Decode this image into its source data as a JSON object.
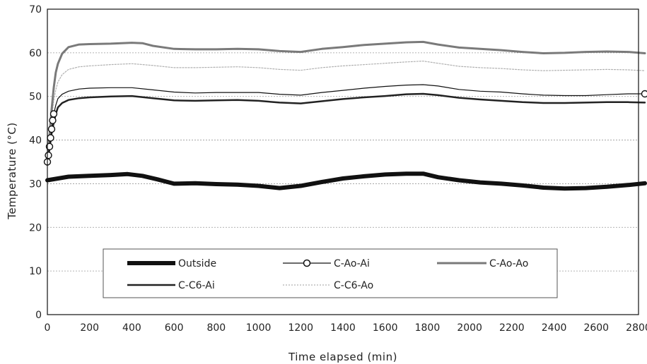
{
  "chart_data": {
    "type": "line",
    "title": "",
    "xlabel": "Time elapsed (min)",
    "ylabel": "Temperature (°C)",
    "xlim": [
      0,
      2800
    ],
    "ylim": [
      0,
      70
    ],
    "xticks": [
      0,
      200,
      400,
      600,
      800,
      1000,
      1200,
      1400,
      1600,
      1800,
      2000,
      2200,
      2400,
      2600,
      2800
    ],
    "yticks": [
      0,
      10,
      20,
      30,
      40,
      50,
      60,
      70
    ],
    "grid": "horizontal dashed",
    "legend": "inside, lower-left",
    "series": [
      {
        "name": "Outside",
        "color": "#111111",
        "style": "thick",
        "points": [
          [
            0,
            30.8
          ],
          [
            50,
            31.2
          ],
          [
            100,
            31.6
          ],
          [
            200,
            31.8
          ],
          [
            300,
            32.0
          ],
          [
            380,
            32.2
          ],
          [
            450,
            31.8
          ],
          [
            520,
            31.0
          ],
          [
            600,
            30.0
          ],
          [
            700,
            30.1
          ],
          [
            800,
            29.9
          ],
          [
            900,
            29.8
          ],
          [
            1000,
            29.5
          ],
          [
            1100,
            29.0
          ],
          [
            1200,
            29.5
          ],
          [
            1300,
            30.4
          ],
          [
            1400,
            31.2
          ],
          [
            1500,
            31.7
          ],
          [
            1600,
            32.1
          ],
          [
            1700,
            32.3
          ],
          [
            1780,
            32.3
          ],
          [
            1850,
            31.5
          ],
          [
            1950,
            30.8
          ],
          [
            2050,
            30.3
          ],
          [
            2150,
            30.0
          ],
          [
            2250,
            29.6
          ],
          [
            2350,
            29.1
          ],
          [
            2450,
            28.9
          ],
          [
            2550,
            29.0
          ],
          [
            2650,
            29.3
          ],
          [
            2750,
            29.7
          ],
          [
            2830,
            30.1
          ]
        ]
      },
      {
        "name": "C-Ao-Ai",
        "color": "#111111",
        "style": "circle-markers",
        "points": [
          [
            0,
            35.0
          ],
          [
            5,
            36.5
          ],
          [
            10,
            38.5
          ],
          [
            15,
            40.5
          ],
          [
            20,
            42.5
          ],
          [
            25,
            44.5
          ],
          [
            30,
            46.0
          ],
          [
            40,
            48.0
          ],
          [
            50,
            49.5
          ],
          [
            70,
            50.5
          ],
          [
            100,
            51.2
          ],
          [
            150,
            51.7
          ],
          [
            200,
            51.9
          ],
          [
            300,
            52.0
          ],
          [
            400,
            52.0
          ],
          [
            500,
            51.5
          ],
          [
            600,
            51.0
          ],
          [
            700,
            50.8
          ],
          [
            800,
            50.9
          ],
          [
            900,
            50.9
          ],
          [
            1000,
            50.9
          ],
          [
            1100,
            50.5
          ],
          [
            1200,
            50.3
          ],
          [
            1300,
            50.9
          ],
          [
            1400,
            51.4
          ],
          [
            1500,
            51.9
          ],
          [
            1600,
            52.3
          ],
          [
            1700,
            52.6
          ],
          [
            1780,
            52.7
          ],
          [
            1850,
            52.4
          ],
          [
            1950,
            51.6
          ],
          [
            2050,
            51.2
          ],
          [
            2150,
            51.0
          ],
          [
            2250,
            50.6
          ],
          [
            2350,
            50.3
          ],
          [
            2450,
            50.2
          ],
          [
            2550,
            50.2
          ],
          [
            2650,
            50.4
          ],
          [
            2750,
            50.6
          ],
          [
            2830,
            50.6
          ]
        ]
      },
      {
        "name": "C-Ao-Ao",
        "color": "#7a7a7a",
        "style": "medium",
        "points": [
          [
            0,
            35.0
          ],
          [
            10,
            41.0
          ],
          [
            20,
            47.0
          ],
          [
            30,
            52.0
          ],
          [
            40,
            55.5
          ],
          [
            50,
            57.5
          ],
          [
            70,
            59.8
          ],
          [
            100,
            61.3
          ],
          [
            150,
            61.9
          ],
          [
            200,
            62.0
          ],
          [
            300,
            62.1
          ],
          [
            400,
            62.3
          ],
          [
            450,
            62.2
          ],
          [
            500,
            61.6
          ],
          [
            600,
            60.9
          ],
          [
            700,
            60.8
          ],
          [
            800,
            60.8
          ],
          [
            900,
            60.9
          ],
          [
            1000,
            60.8
          ],
          [
            1100,
            60.4
          ],
          [
            1200,
            60.2
          ],
          [
            1300,
            60.9
          ],
          [
            1400,
            61.3
          ],
          [
            1500,
            61.8
          ],
          [
            1600,
            62.1
          ],
          [
            1700,
            62.4
          ],
          [
            1780,
            62.5
          ],
          [
            1850,
            61.9
          ],
          [
            1950,
            61.2
          ],
          [
            2050,
            60.9
          ],
          [
            2150,
            60.6
          ],
          [
            2250,
            60.2
          ],
          [
            2350,
            59.9
          ],
          [
            2450,
            60.0
          ],
          [
            2550,
            60.2
          ],
          [
            2650,
            60.3
          ],
          [
            2750,
            60.2
          ],
          [
            2830,
            59.9
          ]
        ]
      },
      {
        "name": "C-C6-Ai",
        "color": "#222222",
        "style": "medium",
        "points": [
          [
            0,
            34.5
          ],
          [
            10,
            38.0
          ],
          [
            20,
            41.5
          ],
          [
            30,
            44.0
          ],
          [
            40,
            46.0
          ],
          [
            50,
            47.5
          ],
          [
            70,
            48.5
          ],
          [
            100,
            49.2
          ],
          [
            150,
            49.6
          ],
          [
            200,
            49.8
          ],
          [
            300,
            50.0
          ],
          [
            400,
            50.1
          ],
          [
            500,
            49.6
          ],
          [
            600,
            49.1
          ],
          [
            700,
            49.0
          ],
          [
            800,
            49.1
          ],
          [
            900,
            49.2
          ],
          [
            1000,
            49.0
          ],
          [
            1100,
            48.6
          ],
          [
            1200,
            48.4
          ],
          [
            1300,
            48.9
          ],
          [
            1400,
            49.4
          ],
          [
            1500,
            49.8
          ],
          [
            1600,
            50.1
          ],
          [
            1700,
            50.5
          ],
          [
            1780,
            50.6
          ],
          [
            1850,
            50.3
          ],
          [
            1950,
            49.7
          ],
          [
            2050,
            49.3
          ],
          [
            2150,
            49.0
          ],
          [
            2250,
            48.7
          ],
          [
            2350,
            48.5
          ],
          [
            2450,
            48.5
          ],
          [
            2550,
            48.6
          ],
          [
            2650,
            48.7
          ],
          [
            2750,
            48.7
          ],
          [
            2830,
            48.6
          ]
        ]
      },
      {
        "name": "C-C6-Ao",
        "color": "#b0b0b0",
        "style": "thin-dotted",
        "points": [
          [
            0,
            35.0
          ],
          [
            10,
            40.0
          ],
          [
            20,
            45.0
          ],
          [
            30,
            49.0
          ],
          [
            40,
            51.5
          ],
          [
            50,
            53.3
          ],
          [
            70,
            55.0
          ],
          [
            100,
            56.2
          ],
          [
            150,
            56.8
          ],
          [
            200,
            57.0
          ],
          [
            300,
            57.3
          ],
          [
            400,
            57.5
          ],
          [
            500,
            57.1
          ],
          [
            600,
            56.6
          ],
          [
            700,
            56.6
          ],
          [
            800,
            56.7
          ],
          [
            900,
            56.8
          ],
          [
            1000,
            56.6
          ],
          [
            1100,
            56.2
          ],
          [
            1200,
            56.0
          ],
          [
            1300,
            56.6
          ],
          [
            1400,
            57.0
          ],
          [
            1500,
            57.3
          ],
          [
            1600,
            57.6
          ],
          [
            1700,
            57.9
          ],
          [
            1780,
            58.1
          ],
          [
            1850,
            57.6
          ],
          [
            1950,
            56.9
          ],
          [
            2050,
            56.6
          ],
          [
            2150,
            56.4
          ],
          [
            2250,
            56.1
          ],
          [
            2350,
            55.9
          ],
          [
            2450,
            56.0
          ],
          [
            2550,
            56.1
          ],
          [
            2650,
            56.2
          ],
          [
            2750,
            56.1
          ],
          [
            2830,
            55.9
          ]
        ]
      }
    ]
  }
}
